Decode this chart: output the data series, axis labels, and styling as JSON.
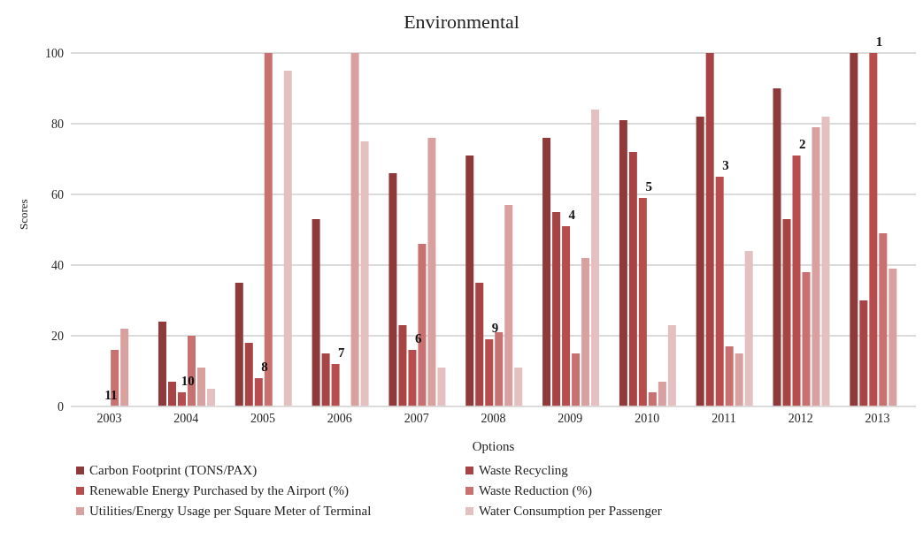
{
  "chart_data": {
    "type": "bar",
    "title": "Environmental",
    "xlabel": "Options",
    "ylabel": "Scores",
    "categories": [
      "2003",
      "2004",
      "2005",
      "2006",
      "2007",
      "2008",
      "2009",
      "2010",
      "2011",
      "2012",
      "2013"
    ],
    "series": [
      {
        "name": "Carbon Footprint (TONS/PAX)",
        "color": "#8e3a3a",
        "values": [
          null,
          24,
          35,
          53,
          66,
          71,
          76,
          81,
          82,
          90,
          100
        ]
      },
      {
        "name": "Waste Recycling",
        "color": "#a84444",
        "values": [
          null,
          7,
          18,
          15,
          23,
          35,
          55,
          72,
          100,
          53,
          30
        ]
      },
      {
        "name": "Renewable Energy Purchased by the Airport (%)",
        "color": "#b84d4d",
        "values": [
          0,
          4,
          8,
          12,
          16,
          19,
          51,
          59,
          65,
          71,
          100
        ]
      },
      {
        "name": "Waste Reduction (%)",
        "color": "#c97070",
        "values": [
          16,
          20,
          100,
          null,
          46,
          21,
          15,
          4,
          17,
          38,
          49
        ]
      },
      {
        "name": "Utilities/Energy Usage per Square Meter of Terminal",
        "color": "#d9a0a0",
        "values": [
          22,
          11,
          null,
          100,
          76,
          57,
          42,
          7,
          15,
          79,
          39
        ]
      },
      {
        "name": "Water Consumption per Passenger",
        "color": "#e4c0c0",
        "values": [
          null,
          5,
          95,
          75,
          11,
          11,
          84,
          23,
          44,
          82,
          null
        ]
      }
    ],
    "annotations": [
      {
        "text": "11",
        "x": "2003",
        "y": 0
      },
      {
        "text": "10",
        "x": "2004",
        "y": 4
      },
      {
        "text": "8",
        "x": "2005",
        "y": 8
      },
      {
        "text": "7",
        "x": "2006",
        "y": 12
      },
      {
        "text": "6",
        "x": "2007",
        "y": 16
      },
      {
        "text": "9",
        "x": "2008",
        "y": 19
      },
      {
        "text": "4",
        "x": "2009",
        "y": 51
      },
      {
        "text": "5",
        "x": "2010",
        "y": 59
      },
      {
        "text": "3",
        "x": "2011",
        "y": 65
      },
      {
        "text": "2",
        "x": "2012",
        "y": 71
      },
      {
        "text": "1",
        "x": "2013",
        "y": 100
      }
    ],
    "ylim": [
      0,
      100
    ],
    "yticks": [
      0,
      20,
      40,
      60,
      80,
      100
    ],
    "grid": "y",
    "legend": "bottom"
  }
}
